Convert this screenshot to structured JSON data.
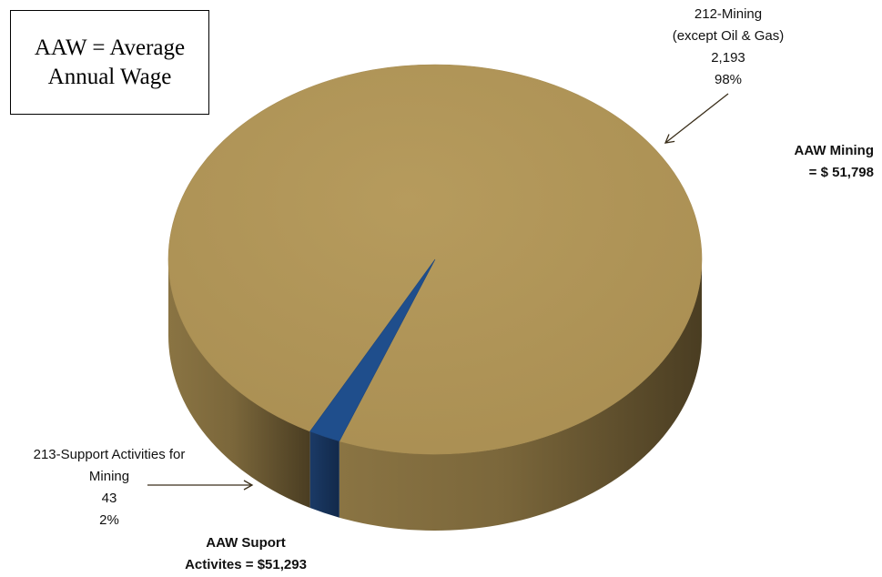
{
  "note_box": {
    "line1": "AAW = Average",
    "line2": "Annual Wage"
  },
  "chart_data": {
    "type": "pie",
    "title": "",
    "slices": [
      {
        "label": "212-Mining (except Oil & Gas)",
        "value": 2193,
        "percent": 98,
        "color": "#B09557"
      },
      {
        "label": "213-Support Activities for Mining",
        "value": 43,
        "percent": 2,
        "color": "#1F4E8C"
      }
    ],
    "legend": "none",
    "style": "3d"
  },
  "labels": {
    "mining": {
      "line1": "212-Mining",
      "line2": "(except Oil & Gas)",
      "value": "2,193",
      "pct": "98%"
    },
    "support": {
      "line1": "213-Support Activities for",
      "line2": "Mining",
      "value": "43",
      "pct": "2%"
    },
    "aaw_mining": {
      "line1": "AAW Mining",
      "line2": "= $ 51,798"
    },
    "aaw_support": {
      "line1": "AAW Suport",
      "line2": "Activites = $51,293"
    }
  }
}
